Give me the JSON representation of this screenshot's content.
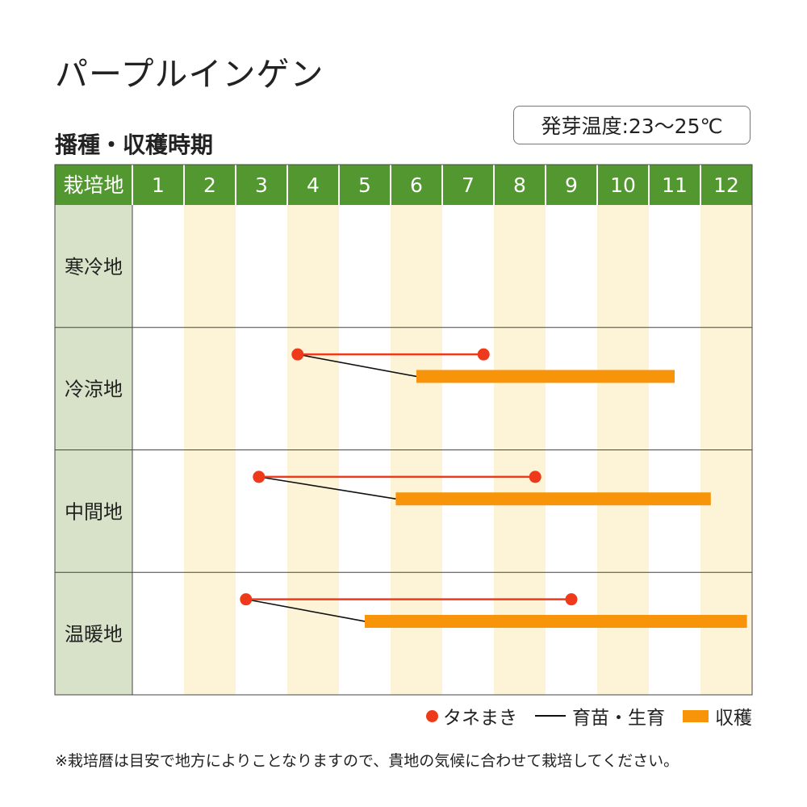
{
  "title": "パープルインゲン",
  "subtitle": "播種・収穫時期",
  "germination_temp": "発芽温度:23〜25℃",
  "legend": {
    "sowing": "タネまき",
    "nursery": "育苗・生育",
    "harvest": "収穫"
  },
  "footnote": "※栽培暦は目安で地方によりことなりますので、貴地の気候に合わせて栽培してください。",
  "colors": {
    "header": "#52972f",
    "label_cell": "#d7e2c8",
    "stripe": "#fdf4d7",
    "sowing": "#ee3a1a",
    "harvest": "#f7940a",
    "nursery": "#111111"
  },
  "chart_data": {
    "type": "gantt",
    "header_label": "栽培地",
    "months": [
      "1",
      "2",
      "3",
      "4",
      "5",
      "6",
      "7",
      "8",
      "9",
      "10",
      "11",
      "12"
    ],
    "rows": [
      {
        "region": "寒冷地",
        "sowing": null,
        "harvest": null
      },
      {
        "region": "冷涼地",
        "sowing": [
          4.2,
          7.8
        ],
        "harvest": [
          6.5,
          11.5
        ]
      },
      {
        "region": "中間地",
        "sowing": [
          3.45,
          8.8
        ],
        "harvest": [
          6.1,
          12.2
        ]
      },
      {
        "region": "温暖地",
        "sowing": [
          3.2,
          9.5
        ],
        "harvest": [
          5.5,
          12.9
        ]
      }
    ]
  }
}
